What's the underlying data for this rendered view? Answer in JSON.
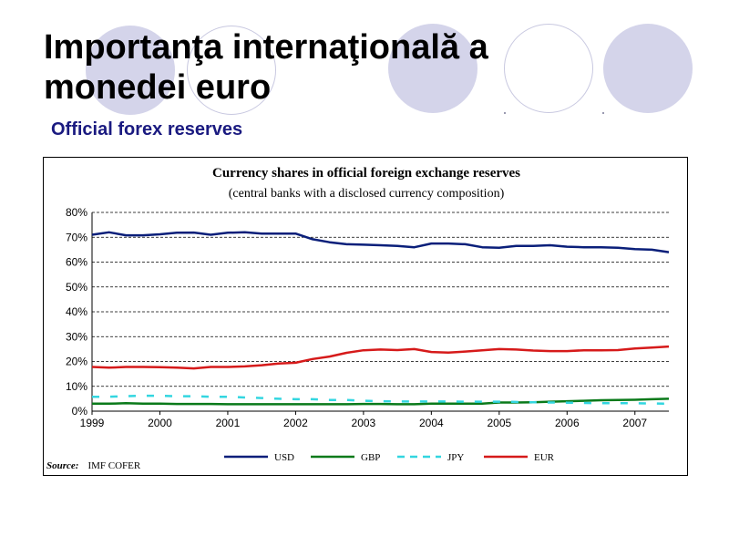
{
  "slide": {
    "title": "Importanţa internaţională a\nmonedei euro",
    "subtitle": "Official forex reserves"
  },
  "colors": {
    "title": "#000000",
    "subtitle": "#1a1a80",
    "decoration_fill": "#d4d4ea",
    "decoration_ring": "#c8c8e0"
  },
  "chart_data": {
    "type": "line",
    "title": "Currency shares in official foreign exchange reserves",
    "subtitle": "(central banks with a disclosed currency composition)",
    "xlabel": "",
    "ylabel": "",
    "xlim": [
      1999,
      2007.5
    ],
    "ylim": [
      0,
      80
    ],
    "x_ticks": [
      "1999",
      "2000",
      "2001",
      "2002",
      "2003",
      "2004",
      "2005",
      "2006",
      "2007"
    ],
    "y_ticks": [
      "0%",
      "10%",
      "20%",
      "30%",
      "40%",
      "50%",
      "60%",
      "70%",
      "80%"
    ],
    "grid": "horizontal dashed",
    "legend_position": "bottom",
    "x": [
      1999.0,
      1999.25,
      1999.5,
      1999.75,
      2000.0,
      2000.25,
      2000.5,
      2000.75,
      2001.0,
      2001.25,
      2001.5,
      2001.75,
      2002.0,
      2002.25,
      2002.5,
      2002.75,
      2003.0,
      2003.25,
      2003.5,
      2003.75,
      2004.0,
      2004.25,
      2004.5,
      2004.75,
      2005.0,
      2005.25,
      2005.5,
      2005.75,
      2006.0,
      2006.25,
      2006.5,
      2006.75,
      2007.0,
      2007.25,
      2007.5
    ],
    "series": [
      {
        "name": "USD",
        "color": "#0a1f7a",
        "dash": "solid",
        "values": [
          71.0,
          72.0,
          70.8,
          70.8,
          71.2,
          71.8,
          71.9,
          71.0,
          71.8,
          72.0,
          71.5,
          71.5,
          71.5,
          69.2,
          68.0,
          67.2,
          67.0,
          66.8,
          66.5,
          66.0,
          67.5,
          67.5,
          67.2,
          66.0,
          65.8,
          66.5,
          66.5,
          66.8,
          66.2,
          66.0,
          66.0,
          65.8,
          65.2,
          65.0,
          64.0
        ]
      },
      {
        "name": "GBP",
        "color": "#0a7a1a",
        "dash": "solid",
        "values": [
          3.0,
          3.0,
          3.2,
          3.0,
          3.0,
          2.9,
          2.9,
          2.9,
          2.8,
          2.8,
          2.8,
          2.8,
          2.8,
          2.8,
          2.8,
          2.8,
          2.9,
          2.9,
          2.8,
          2.8,
          3.0,
          3.0,
          3.0,
          3.0,
          3.5,
          3.5,
          3.6,
          3.8,
          4.0,
          4.2,
          4.4,
          4.5,
          4.6,
          4.8,
          5.0
        ]
      },
      {
        "name": "JPY",
        "color": "#33d6e0",
        "dash": "dashed",
        "values": [
          5.8,
          5.8,
          6.0,
          6.2,
          6.2,
          6.0,
          6.0,
          5.8,
          5.8,
          5.5,
          5.3,
          5.0,
          4.8,
          4.8,
          4.5,
          4.5,
          4.2,
          4.0,
          3.9,
          3.9,
          3.9,
          3.9,
          3.8,
          3.8,
          3.8,
          3.7,
          3.6,
          3.5,
          3.4,
          3.3,
          3.2,
          3.2,
          3.2,
          3.1,
          3.0
        ]
      },
      {
        "name": "EUR",
        "color": "#d61a1a",
        "dash": "solid",
        "values": [
          17.8,
          17.5,
          17.8,
          17.8,
          17.7,
          17.5,
          17.2,
          17.8,
          17.8,
          18.0,
          18.5,
          19.2,
          19.5,
          21.0,
          22.0,
          23.5,
          24.5,
          24.8,
          24.6,
          25.0,
          23.8,
          23.6,
          24.0,
          24.5,
          25.0,
          24.8,
          24.4,
          24.2,
          24.2,
          24.5,
          24.5,
          24.6,
          25.2,
          25.6,
          26.0
        ]
      }
    ],
    "source_label": "Source:",
    "source_text": "IMF COFER"
  }
}
